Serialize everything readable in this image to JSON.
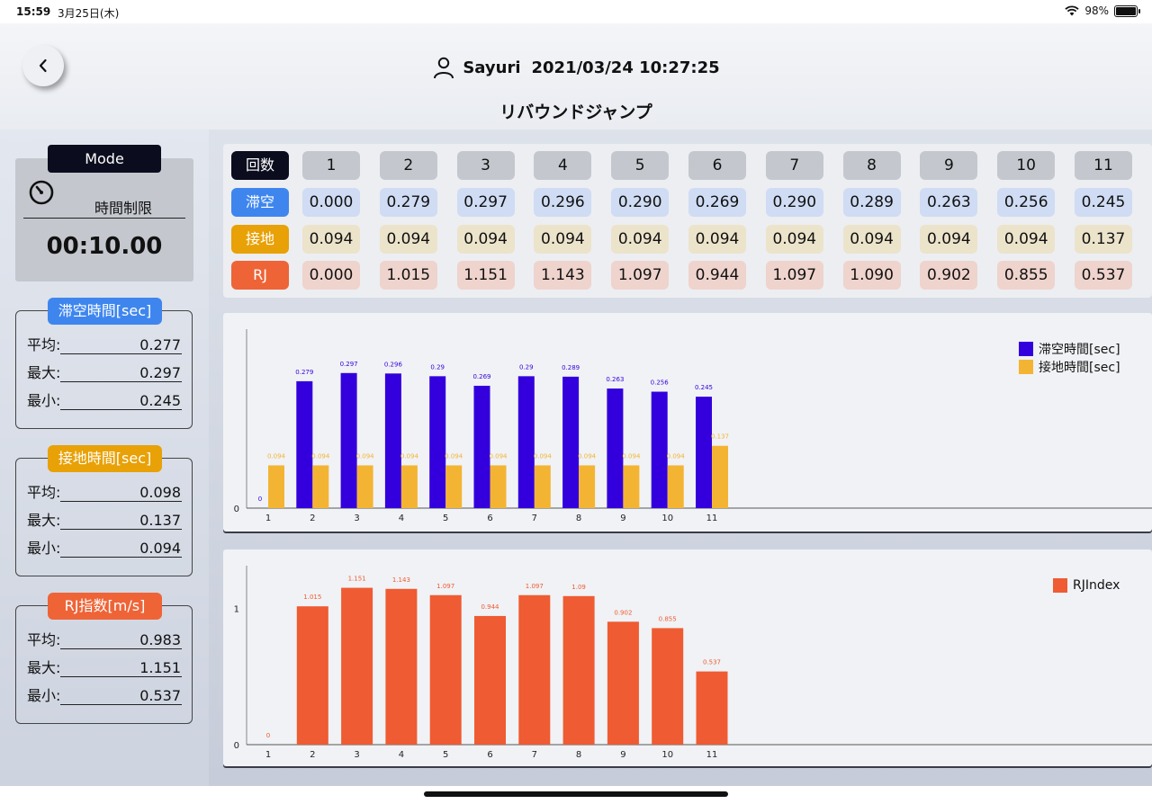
{
  "status_bar": {
    "time": "15:59",
    "date": "3月25日(木)",
    "battery": "98%"
  },
  "header": {
    "user_name": "Sayuri",
    "datetime": "2021/03/24 10:27:25",
    "title": "リバウンドジャンプ"
  },
  "mode": {
    "label": "Mode",
    "type": "時間制限",
    "time": "00:10.00"
  },
  "stats": [
    {
      "title": "滞空時間[sec]",
      "color": "#3e86ee",
      "rows": [
        {
          "label": "平均:",
          "value": "0.277"
        },
        {
          "label": "最大:",
          "value": "0.297"
        },
        {
          "label": "最小:",
          "value": "0.245"
        }
      ]
    },
    {
      "title": "接地時間[sec]",
      "color": "#e8a106",
      "rows": [
        {
          "label": "平均:",
          "value": "0.098"
        },
        {
          "label": "最大:",
          "value": "0.137"
        },
        {
          "label": "最小:",
          "value": "0.094"
        }
      ]
    },
    {
      "title": "RJ指数[m/s]",
      "color": "#ee6437",
      "rows": [
        {
          "label": "平均:",
          "value": "0.983"
        },
        {
          "label": "最大:",
          "value": "1.151"
        },
        {
          "label": "最小:",
          "value": "0.537"
        }
      ]
    }
  ],
  "table": {
    "count_header": "回数",
    "counts": [
      "1",
      "2",
      "3",
      "4",
      "5",
      "6",
      "7",
      "8",
      "9",
      "10",
      "11"
    ],
    "rows": [
      {
        "label": "滞空",
        "head_color": "#3e86ee",
        "cell_color": "#cfdcf3",
        "values": [
          "0.000",
          "0.279",
          "0.297",
          "0.296",
          "0.290",
          "0.269",
          "0.290",
          "0.289",
          "0.263",
          "0.256",
          "0.245"
        ]
      },
      {
        "label": "接地",
        "head_color": "#e8a106",
        "cell_color": "#ece3cb",
        "values": [
          "0.094",
          "0.094",
          "0.094",
          "0.094",
          "0.094",
          "0.094",
          "0.094",
          "0.094",
          "0.094",
          "0.094",
          "0.137"
        ]
      },
      {
        "label": "RJ",
        "head_color": "#ee6437",
        "cell_color": "#efd3cd",
        "values": [
          "0.000",
          "1.015",
          "1.151",
          "1.143",
          "1.097",
          "0.944",
          "1.097",
          "1.090",
          "0.902",
          "0.855",
          "0.537"
        ]
      }
    ]
  },
  "chart_data": [
    {
      "type": "bar",
      "categories": [
        "1",
        "2",
        "3",
        "4",
        "5",
        "6",
        "7",
        "8",
        "9",
        "10",
        "11"
      ],
      "series": [
        {
          "name": "滞空時間[sec]",
          "color": "#3300dd",
          "values": [
            0,
            0.279,
            0.297,
            0.296,
            0.29,
            0.269,
            0.29,
            0.289,
            0.263,
            0.256,
            0.245
          ],
          "labels": [
            "0",
            "0.279",
            "0.297",
            "0.296",
            "0.29",
            "0.269",
            "0.29",
            "0.289",
            "0.263",
            "0.256",
            "0.245"
          ]
        },
        {
          "name": "接地時間[sec]",
          "color": "#f4b433",
          "values": [
            0.094,
            0.094,
            0.094,
            0.094,
            0.094,
            0.094,
            0.094,
            0.094,
            0.094,
            0.094,
            0.137
          ],
          "labels": [
            "0.094",
            "0.094",
            "0.094",
            "0.094",
            "0.094",
            "0.094",
            "0.094",
            "0.094",
            "0.094",
            "0.094",
            "0.137"
          ]
        }
      ],
      "yticks": [
        "0"
      ],
      "ylim": [
        0,
        0.35
      ],
      "legend_position": "top-right"
    },
    {
      "type": "bar",
      "categories": [
        "1",
        "2",
        "3",
        "4",
        "5",
        "6",
        "7",
        "8",
        "9",
        "10",
        "11"
      ],
      "series": [
        {
          "name": "RJIndex",
          "color": "#ef5b32",
          "values": [
            0,
            1.015,
            1.151,
            1.143,
            1.097,
            0.944,
            1.097,
            1.09,
            0.902,
            0.855,
            0.537
          ],
          "labels": [
            "0",
            "1.015",
            "1.151",
            "1.143",
            "1.097",
            "0.944",
            "1.097",
            "1.09",
            "0.902",
            "0.855",
            "0.537"
          ]
        }
      ],
      "yticks": [
        "0",
        "1"
      ],
      "ylim": [
        0,
        1.3
      ],
      "legend_position": "top-right"
    }
  ]
}
